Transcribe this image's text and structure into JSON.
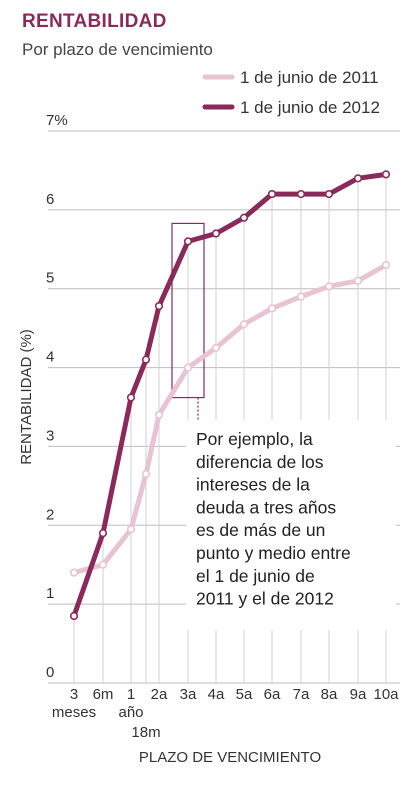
{
  "header": {
    "title": "RENTABILIDAD",
    "subtitle": "Por plazo de vencimiento"
  },
  "chart_data": {
    "type": "line",
    "title": "RENTABILIDAD",
    "subtitle": "Por plazo de vencimiento",
    "xlabel": "PLAZO DE VENCIMIENTO",
    "ylabel": "RENTABILIDAD (%)",
    "ylim": [
      0,
      7
    ],
    "yticks": [
      "0",
      "1",
      "2",
      "3",
      "4",
      "5",
      "6",
      "7%"
    ],
    "categories": [
      "3 meses",
      "6m",
      "1 año",
      "18m",
      "2a",
      "3a",
      "4a",
      "5a",
      "6a",
      "7a",
      "8a",
      "9a",
      "10a"
    ],
    "tick_labels": [
      {
        "line1": "3",
        "line2": "meses"
      },
      {
        "line1": "6m",
        "line2": ""
      },
      {
        "line1": "1",
        "line2": "año"
      },
      {
        "line1": "",
        "line2": "18m"
      },
      {
        "line1": "2a",
        "line2": ""
      },
      {
        "line1": "3a",
        "line2": ""
      },
      {
        "line1": "4a",
        "line2": ""
      },
      {
        "line1": "5a",
        "line2": ""
      },
      {
        "line1": "6a",
        "line2": ""
      },
      {
        "line1": "7a",
        "line2": ""
      },
      {
        "line1": "8a",
        "line2": ""
      },
      {
        "line1": "9a",
        "line2": ""
      },
      {
        "line1": "10a",
        "line2": ""
      }
    ],
    "series": [
      {
        "name": "1 de junio de 2011",
        "color": "#e8c4d2",
        "values": [
          1.4,
          1.5,
          1.95,
          2.65,
          3.4,
          4.0,
          4.25,
          4.55,
          4.75,
          4.9,
          5.03,
          5.1,
          5.3
        ]
      },
      {
        "name": "1 de junio de 2012",
        "color": "#8a2a5a",
        "values": [
          0.85,
          1.9,
          3.62,
          4.1,
          4.78,
          5.6,
          5.7,
          5.9,
          6.2,
          6.2,
          6.2,
          6.4,
          6.45
        ]
      }
    ],
    "grid": true,
    "legend": "top-right",
    "annotation": {
      "lines": [
        "Por ejemplo, la",
        "diferencia de los",
        "intereses de la",
        "deuda a tres años",
        "es de más de un",
        "punto y medio entre",
        "el 1 de junio de",
        "2011 y el de 2012"
      ],
      "highlight_category": "3a",
      "highlight_color": "#8a2a5a"
    }
  }
}
